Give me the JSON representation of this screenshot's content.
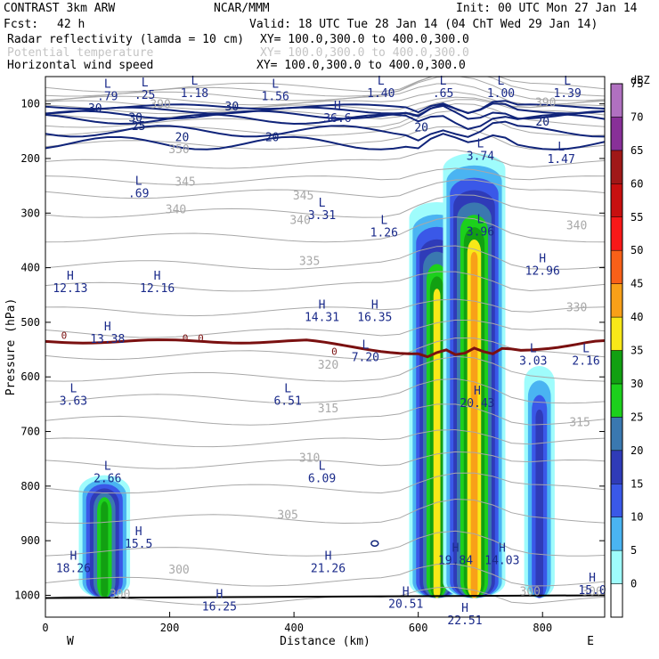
{
  "header": {
    "model": "CONTRAST  3km ARW",
    "source": "NCAR/MMM",
    "init": "Init: 00 UTC Mon 27 Jan 14",
    "fcst_label": "Fcst:",
    "fcst_value": "42 h",
    "valid": "Valid: 18 UTC Tue 28 Jan 14 (04 ChT Wed 29 Jan 14)",
    "fields": [
      {
        "name": "Radar reflectivity (lamda = 10 cm)",
        "xy": "XY= 100.0,300.0 to 400.0,300.0"
      },
      {
        "name": "Potential temperature",
        "xy": "XY= 100.0,300.0 to 400.0,300.0"
      },
      {
        "name": "Horizontal wind speed",
        "xy": "XY= 100.0,300.0 to 400.0,300.0"
      }
    ]
  },
  "colors": {
    "wind_contour": "#10247a",
    "theta_contour": "#a8a8a8",
    "zero_contour": "#7a1010"
  },
  "chart_data": {
    "type": "heatmap",
    "title": "Radar reflectivity (lamda = 10 cm)",
    "xlabel": "Distance (km)",
    "ylabel": "Pressure (hPa)",
    "xlim": [
      0,
      900
    ],
    "ylim": [
      1040,
      50
    ],
    "x_ticks": [
      0,
      200,
      400,
      600,
      800
    ],
    "y_ticks": [
      100,
      200,
      300,
      400,
      500,
      600,
      700,
      800,
      900,
      1000
    ],
    "x_end_labels": {
      "left": "W",
      "right": "E"
    },
    "colorbar": {
      "unit": "dBZ",
      "levels": [
        0,
        5,
        10,
        15,
        20,
        25,
        30,
        35,
        40,
        45,
        50,
        55,
        60,
        65,
        70,
        75
      ],
      "colors": [
        "#ffffff",
        "#9ffcfc",
        "#4ab4f2",
        "#3a58e8",
        "#2f3bb8",
        "#3a78b0",
        "#1cd01c",
        "#12a012",
        "#f8e818",
        "#f8a018",
        "#f86018",
        "#f81818",
        "#c81010",
        "#a01818",
        "#883098",
        "#b070c0"
      ]
    },
    "wind_speed_labels": [
      {
        "x": 80,
        "p": 115,
        "text": "30"
      },
      {
        "x": 150,
        "p": 148,
        "text": "25"
      },
      {
        "x": 145,
        "p": 132,
        "text": "30"
      },
      {
        "x": 220,
        "p": 168,
        "text": "20"
      },
      {
        "x": 300,
        "p": 112,
        "text": "30"
      },
      {
        "x": 365,
        "p": 168,
        "text": "20"
      },
      {
        "x": 605,
        "p": 150,
        "text": "20"
      },
      {
        "x": 800,
        "p": 140,
        "text": "20"
      }
    ],
    "theta_labels": [
      {
        "x": 185,
        "p": 108,
        "text": "390"
      },
      {
        "x": 215,
        "p": 190,
        "text": "350"
      },
      {
        "x": 225,
        "p": 250,
        "text": "345"
      },
      {
        "x": 210,
        "p": 300,
        "text": "340"
      },
      {
        "x": 415,
        "p": 275,
        "text": "345"
      },
      {
        "x": 410,
        "p": 320,
        "text": "340"
      },
      {
        "x": 425,
        "p": 395,
        "text": "335"
      },
      {
        "x": 455,
        "p": 585,
        "text": "320"
      },
      {
        "x": 455,
        "p": 665,
        "text": "315"
      },
      {
        "x": 425,
        "p": 755,
        "text": "310"
      },
      {
        "x": 390,
        "p": 860,
        "text": "305"
      },
      {
        "x": 215,
        "p": 960,
        "text": "300"
      },
      {
        "x": 805,
        "p": 105,
        "text": "390"
      },
      {
        "x": 855,
        "p": 330,
        "text": "340"
      },
      {
        "x": 855,
        "p": 480,
        "text": "330"
      },
      {
        "x": 860,
        "p": 690,
        "text": "315"
      },
      {
        "x": 780,
        "p": 1000,
        "text": "300"
      },
      {
        "x": 880,
        "p": 1000,
        "text": "300"
      },
      {
        "x": 120,
        "p": 1005,
        "text": "300"
      }
    ],
    "zero_labels": [
      {
        "x": 30,
        "p": 530,
        "text": "0"
      },
      {
        "x": 225,
        "p": 535,
        "text": "0"
      },
      {
        "x": 250,
        "p": 535,
        "text": "0"
      },
      {
        "x": 465,
        "p": 560,
        "text": "0"
      }
    ],
    "extrema": [
      {
        "x": 100,
        "p": 70,
        "type": "L",
        "value": ".79"
      },
      {
        "x": 160,
        "p": 68,
        "type": "L",
        "value": ".25"
      },
      {
        "x": 240,
        "p": 65,
        "type": "L",
        "value": "1.18"
      },
      {
        "x": 370,
        "p": 70,
        "type": "L",
        "value": "1.56"
      },
      {
        "x": 540,
        "p": 65,
        "type": "L",
        "value": "1.40"
      },
      {
        "x": 640,
        "p": 65,
        "type": "L",
        "value": ".65"
      },
      {
        "x": 733,
        "p": 65,
        "type": "L",
        "value": "1.00"
      },
      {
        "x": 840,
        "p": 65,
        "type": "L",
        "value": "1.39"
      },
      {
        "x": 470,
        "p": 110,
        "type": "H",
        "value": "36.6"
      },
      {
        "x": 700,
        "p": 180,
        "type": "L",
        "value": "3.74"
      },
      {
        "x": 830,
        "p": 185,
        "type": "L",
        "value": "1.47"
      },
      {
        "x": 150,
        "p": 248,
        "type": "L",
        "value": ".69"
      },
      {
        "x": 445,
        "p": 288,
        "type": "L",
        "value": "3.31"
      },
      {
        "x": 545,
        "p": 320,
        "type": "L",
        "value": "1.26"
      },
      {
        "x": 700,
        "p": 318,
        "type": "L",
        "value": "3.96"
      },
      {
        "x": 800,
        "p": 390,
        "type": "H",
        "value": "12.96"
      },
      {
        "x": 40,
        "p": 422,
        "type": "H",
        "value": "12.13"
      },
      {
        "x": 180,
        "p": 422,
        "type": "H",
        "value": "12.16"
      },
      {
        "x": 445,
        "p": 475,
        "type": "H",
        "value": "14.31"
      },
      {
        "x": 530,
        "p": 475,
        "type": "H",
        "value": "16.35"
      },
      {
        "x": 100,
        "p": 515,
        "type": "H",
        "value": "13.38"
      },
      {
        "x": 515,
        "p": 548,
        "type": "L",
        "value": "7.20"
      },
      {
        "x": 785,
        "p": 555,
        "type": "L",
        "value": "3.03"
      },
      {
        "x": 870,
        "p": 555,
        "type": "L",
        "value": "2.16"
      },
      {
        "x": 45,
        "p": 628,
        "type": "L",
        "value": "3.63"
      },
      {
        "x": 390,
        "p": 628,
        "type": "L",
        "value": "6.51"
      },
      {
        "x": 695,
        "p": 632,
        "type": "H",
        "value": "20.43"
      },
      {
        "x": 100,
        "p": 770,
        "type": "L",
        "value": "2.66"
      },
      {
        "x": 445,
        "p": 770,
        "type": "L",
        "value": "6.09"
      },
      {
        "x": 150,
        "p": 890,
        "type": "H",
        "value": "15.5"
      },
      {
        "x": 45,
        "p": 935,
        "type": "H",
        "value": "18.26"
      },
      {
        "x": 455,
        "p": 935,
        "type": "H",
        "value": "21.26"
      },
      {
        "x": 660,
        "p": 920,
        "type": "H",
        "value": "19.84"
      },
      {
        "x": 735,
        "p": 920,
        "type": "H",
        "value": "14.03"
      },
      {
        "x": 880,
        "p": 975,
        "type": "H",
        "value": "15.0"
      },
      {
        "x": 580,
        "p": 1000,
        "type": "H",
        "value": "20.51"
      },
      {
        "x": 280,
        "p": 1005,
        "type": "H",
        "value": "16.25"
      },
      {
        "x": 675,
        "p": 1030,
        "type": "H",
        "value": "22.51"
      }
    ],
    "reflectivity_cells": [
      {
        "x": 95,
        "p_top": 780,
        "p_bottom": 1005,
        "max_dbz": 37
      },
      {
        "x": 630,
        "p_top": 280,
        "p_bottom": 1005,
        "max_dbz": 40
      },
      {
        "x": 690,
        "p_top": 190,
        "p_bottom": 1005,
        "max_dbz": 45
      },
      {
        "x": 795,
        "p_top": 580,
        "p_bottom": 1005,
        "max_dbz": 22
      }
    ]
  }
}
